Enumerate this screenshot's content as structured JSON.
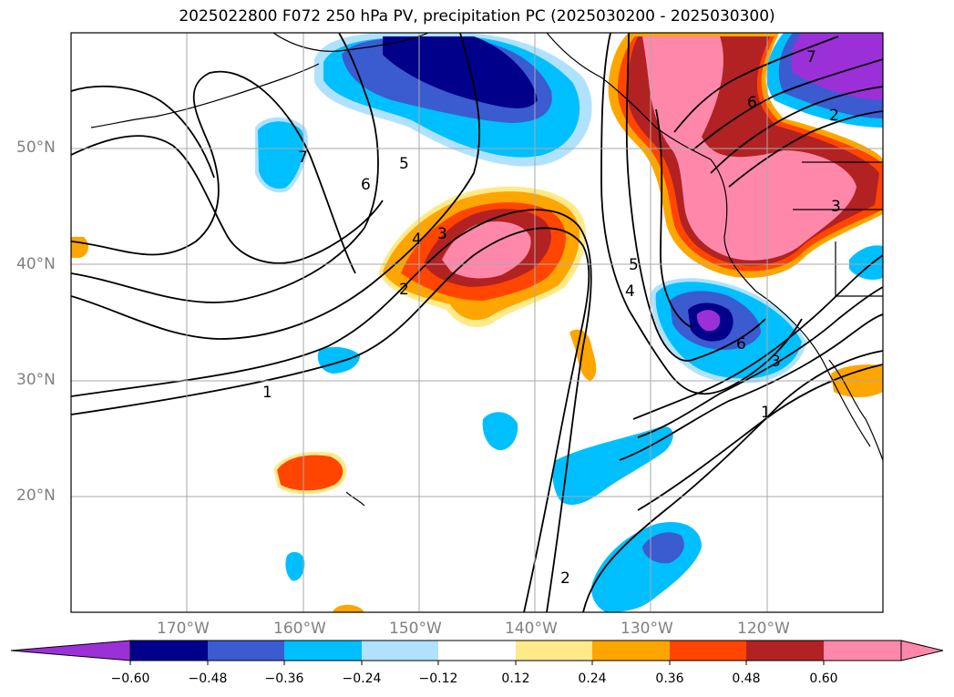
{
  "title": "2025022800 F072 250 hPa PV, precipitation PC (2025030200 - 2025030300)",
  "lat_labels": [
    "50°N",
    "40°N",
    "30°N",
    "20°N"
  ],
  "lon_labels": [
    "170°W",
    "160°W",
    "150°W",
    "140°W",
    "130°W",
    "120°W"
  ],
  "contour_labels": [
    "1",
    "2",
    "3",
    "4",
    "5",
    "6",
    "7"
  ],
  "colorbar": {
    "tick_labels": [
      "−0.60",
      "−0.48",
      "−0.36",
      "−0.24",
      "−0.12",
      "0.12",
      "0.24",
      "0.36",
      "0.48",
      "0.60"
    ],
    "colors": [
      "#9b30d9",
      "#00008b",
      "#3b5bd1",
      "#00bfff",
      "#b0e2ff",
      "#ffffff",
      "#ffea8a",
      "#ffa500",
      "#ff4500",
      "#b22222",
      "#ff88aa"
    ]
  }
}
